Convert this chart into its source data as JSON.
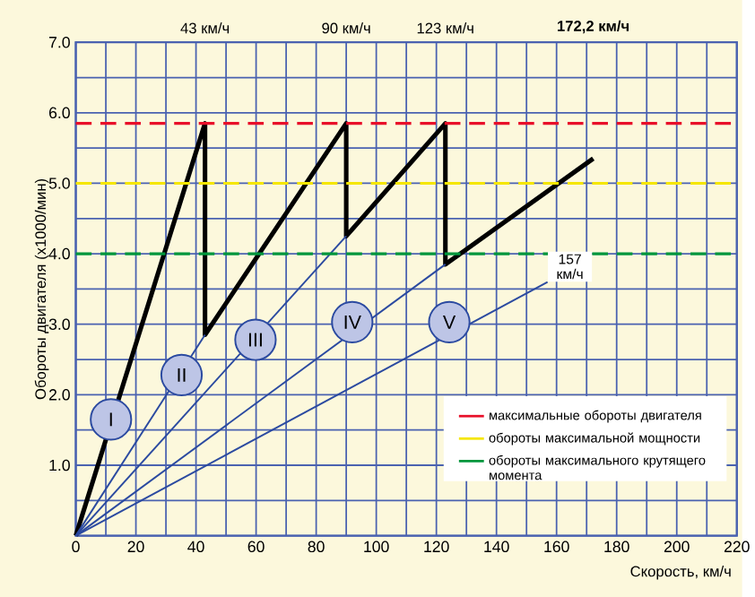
{
  "chart_data": {
    "type": "line",
    "xlabel": "Скорость, км/ч",
    "ylabel": "Обороты двигателя (x1000/мин)",
    "xlim": [
      0,
      220
    ],
    "ylim": [
      0,
      7
    ],
    "x2lim": [
      0,
      220
    ],
    "x2ticks": [
      {
        "value": 43,
        "label": "43 км/ч"
      },
      {
        "value": 90,
        "label": "90 км/ч"
      },
      {
        "value": 123,
        "label": "123 км/ч"
      },
      {
        "value": 172.2,
        "label": "**172,2 км/ч**"
      }
    ],
    "xticks": [
      0,
      {
        "value": 10,
        "label": null
      },
      20,
      {
        "value": 30,
        "label": null
      },
      40,
      {
        "value": 50,
        "label": null
      },
      60,
      {
        "value": 70,
        "label": null
      },
      80,
      {
        "value": 90,
        "label": null
      },
      100,
      {
        "value": 110,
        "label": null
      },
      120,
      {
        "value": 130,
        "label": null
      },
      140,
      {
        "value": 150,
        "label": null
      },
      160,
      {
        "value": 170,
        "label": null
      },
      180,
      {
        "value": 190,
        "label": null
      },
      200,
      {
        "value": 210,
        "label": null
      },
      220
    ],
    "yticks": [
      {
        "value": 0,
        "label": null
      },
      {
        "value": 0.5,
        "label": null
      },
      {
        "value": 1,
        "label": "1.0"
      },
      {
        "value": 1.5,
        "label": null
      },
      {
        "value": 2,
        "label": "2.0"
      },
      {
        "value": 2.5,
        "label": null
      },
      {
        "value": 3,
        "label": "3.0"
      },
      {
        "value": 3.5,
        "label": null
      },
      {
        "value": 4,
        "label": "4.0"
      },
      {
        "value": 4.5,
        "label": null
      },
      {
        "value": 5,
        "label": "5.0"
      },
      {
        "value": 5.5,
        "label": null
      },
      {
        "value": 6,
        "label": "6.0"
      },
      {
        "value": 6.5,
        "label": null
      },
      {
        "value": 7,
        "label": "7.0"
      }
    ],
    "grid": true,
    "legend": "bottom right",
    "marker": "none",
    "line_style": "solid",
    "series": [
      {
        "color": "#000000",
        "x": [
          0,
          43,
          43,
          90,
          90,
          123,
          123,
          172.2
        ],
        "values": [
          0,
          5.85,
          2.85,
          5.85,
          4.25,
          5.85,
          3.85,
          5.35
        ]
      },
      {
        "color": "#2b4aa0",
        "x": [
          0,
          43
        ],
        "values": [
          0,
          2.85
        ]
      },
      {
        "color": "#2b4aa0",
        "x": [
          0,
          90
        ],
        "values": [
          0,
          4.25
        ]
      },
      {
        "color": "#2b4aa0",
        "x": [
          0,
          123
        ],
        "values": [
          0,
          3.85
        ]
      },
      {
        "color": "#2b4aa0",
        "x": [
          0,
          157
        ],
        "values": [
          0,
          3.6
        ]
      }
    ],
    "ref_lines": [
      {
        "axis": "y",
        "value": 5.85,
        "label": "максимальные обороты двигателя",
        "color": "#e8102a",
        "line_style": "dashed"
      },
      {
        "axis": "y",
        "value": 5.0,
        "label": "обороты максимальной мощности",
        "color": "#f5e600",
        "line_style": "dashed"
      },
      {
        "axis": "y",
        "value": 4.0,
        "label": "обороты максимального крутящего момента",
        "color": "#00963c",
        "line_style": "dashed"
      }
    ],
    "annotations": [
      {
        "text": "157 км/ч",
        "x": 157,
        "y": 3.6
      },
      {
        "text": "I",
        "x": 11.7,
        "y": 1.65
      },
      {
        "text": "II",
        "x": 35.2,
        "y": 2.28
      },
      {
        "text": "III",
        "x": 59.8,
        "y": 2.78
      },
      {
        "text": "IV",
        "x": 92,
        "y": 3.03
      },
      {
        "text": "V",
        "x": 124.3,
        "y": 3.03
      }
    ]
  }
}
